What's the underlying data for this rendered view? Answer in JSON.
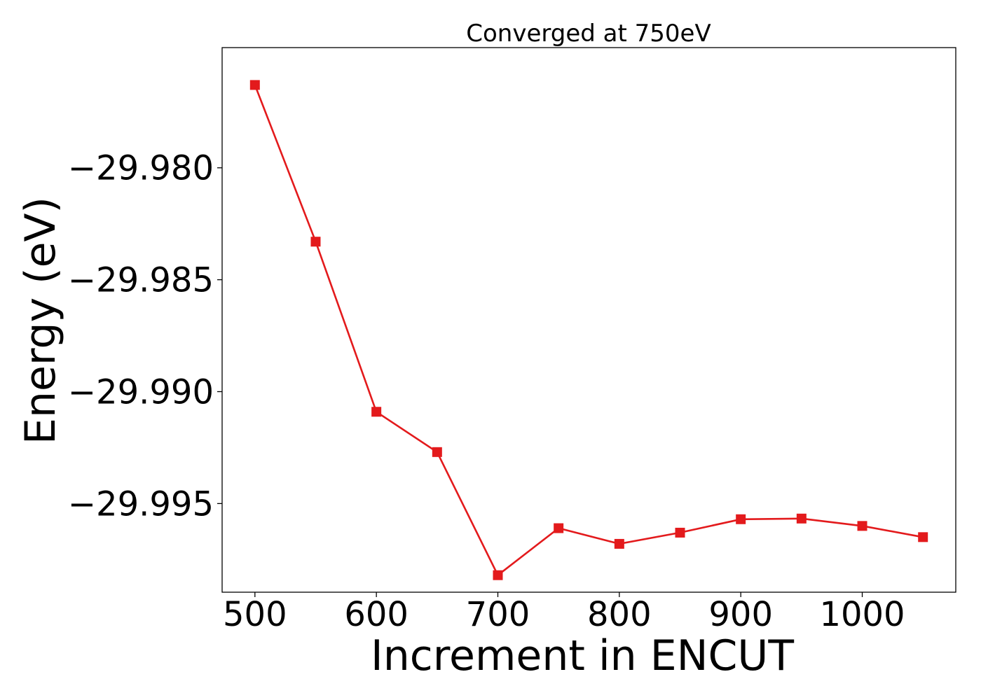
{
  "chart_data": {
    "type": "line",
    "title": "Converged at 750eV",
    "xlabel": "Increment in ENCUT",
    "ylabel": "Energy (eV)",
    "xlim": [
      473,
      1077
    ],
    "ylim": [
      -29.99896,
      -29.97463
    ],
    "grid": false,
    "x_ticks": [
      500,
      600,
      700,
      800,
      900,
      1000
    ],
    "y_ticks": [
      -29.98,
      -29.985,
      -29.99,
      -29.995
    ],
    "x_tick_labels": [
      "500",
      "600",
      "700",
      "800",
      "900",
      "1000"
    ],
    "y_tick_labels": [
      "−29.980",
      "−29.985",
      "−29.990",
      "−29.995"
    ],
    "series": [
      {
        "color": "#e31a1c",
        "marker": "square",
        "x": [
          500,
          550,
          600,
          650,
          700,
          750,
          800,
          850,
          900,
          950,
          1000,
          1050
        ],
        "y": [
          -29.9763,
          -29.9833,
          -29.9909,
          -29.9927,
          -29.9982,
          -29.9961,
          -29.9968,
          -29.9963,
          -29.9957,
          -29.99567,
          -29.996,
          -29.9965
        ]
      }
    ]
  }
}
